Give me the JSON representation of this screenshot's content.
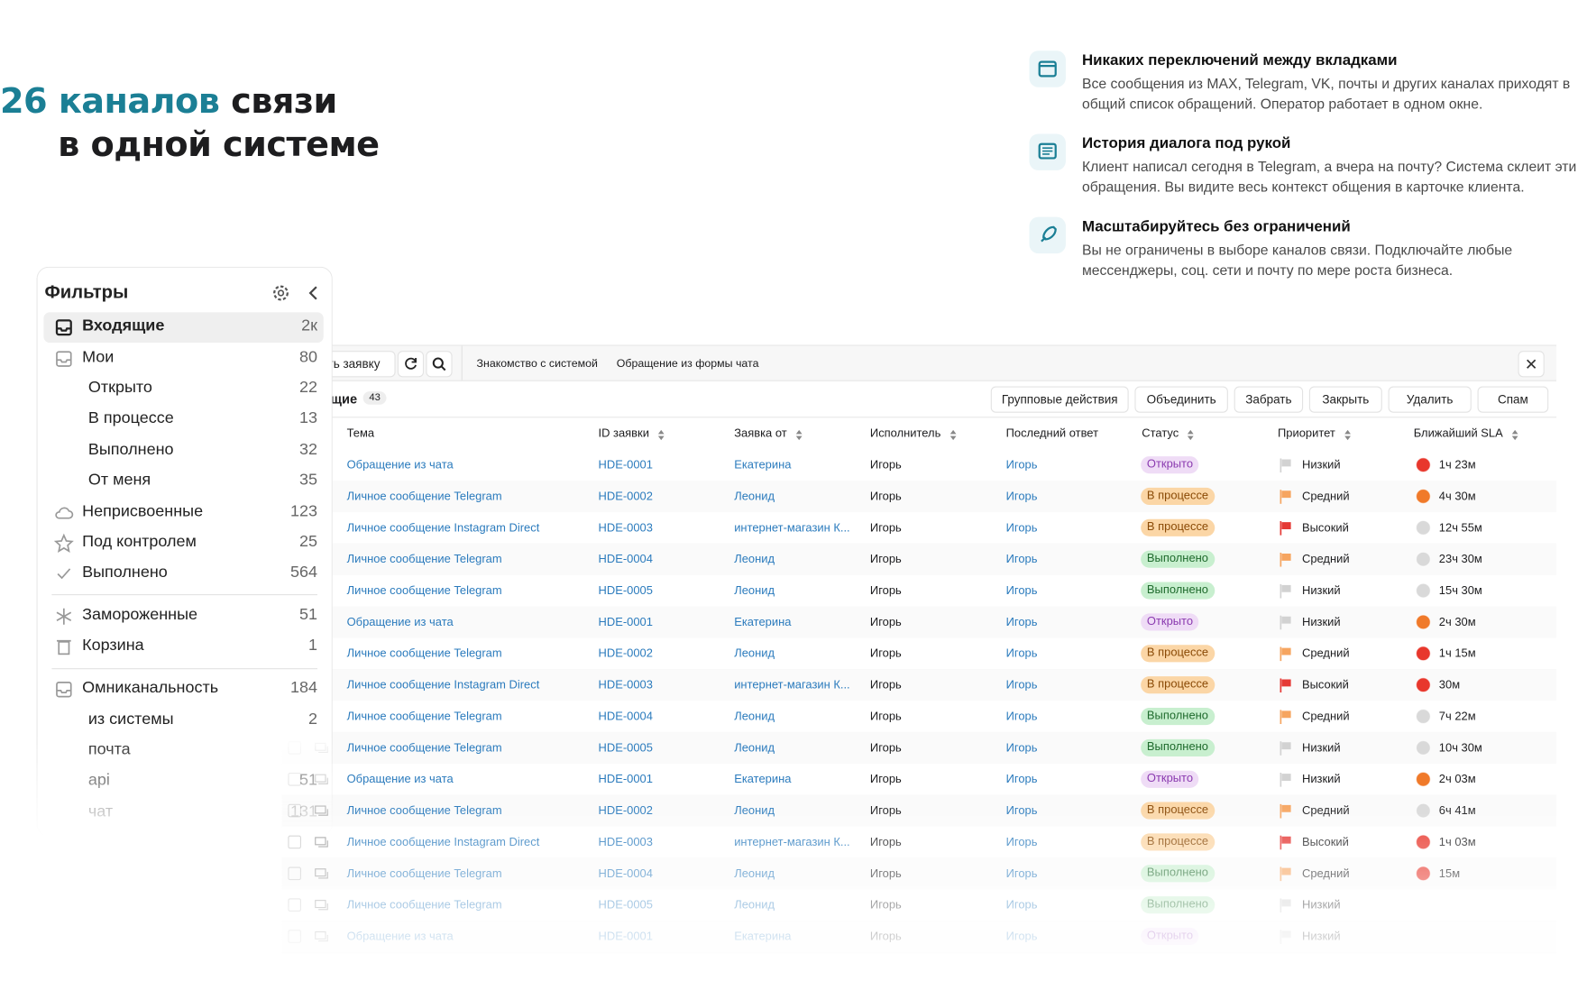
{
  "header": {
    "title_accent": "26 каналов",
    "title_rest": "связи",
    "title_line2": "в одной системе"
  },
  "features": [
    {
      "title": "Никаких переключений между вкладками",
      "text": "Все сообщения из MAX, Telegram, VK, почты и других каналах приходят в общий список обращений. Оператор работает в одном окне."
    },
    {
      "title": "История диалога под рукой",
      "text": "Клиент написал сегодня в Telegram, а вчера на почту? Система склеит эти обращения. Вы видите весь контекст общения в карточке клиента."
    },
    {
      "title": "Масштабируйтесь без ограничений",
      "text": "Вы не ограничены в выборе каналов связи. Подключайте любые мессенджеры, соц. сети и почту по мере роста бизнеса."
    }
  ],
  "filters": {
    "title": "Фильтры",
    "items": [
      {
        "label": "Входящие",
        "count": "2к"
      },
      {
        "label": "Мои",
        "count": "80"
      },
      {
        "label": "Открыто",
        "count": "22"
      },
      {
        "label": "В процессе",
        "count": "13"
      },
      {
        "label": "Выполнено",
        "count": "32"
      },
      {
        "label": "От меня",
        "count": "35"
      },
      {
        "label": "Неприсвоенные",
        "count": "123"
      },
      {
        "label": "Под контролем",
        "count": "25"
      },
      {
        "label": "Выполнено",
        "count": "564"
      },
      {
        "label": "Замороженные",
        "count": "51"
      },
      {
        "label": "Корзина",
        "count": "1"
      },
      {
        "label": "Омниканальность",
        "count": "184"
      },
      {
        "label": "из системы",
        "count": "2"
      },
      {
        "label": "почта"
      },
      {
        "label": "api",
        "count": "51"
      },
      {
        "label": "чат",
        "count": "131"
      }
    ]
  },
  "table": {
    "create_button": "ть заявку",
    "tabs": [
      "Знакомство с системой",
      "Обращение из формы чата"
    ],
    "list_title": "щие",
    "list_count": "43",
    "actions": [
      "Групповые действия",
      "Объединить",
      "Забрать",
      "Закрыть",
      "Удалить",
      "Спам"
    ],
    "columns": [
      "Тема",
      "ID заявки",
      "Заявка от",
      "Исполнитель",
      "Последний ответ",
      "Статус",
      "Приоритет",
      "Ближайший SLA"
    ],
    "status_colors": {
      "Открыто": [
        "#efdcf6",
        "#8b3bb0"
      ],
      "В процессе": [
        "#fbd6a6",
        "#8a4a06"
      ],
      "Выполнено": [
        "#c8efcf",
        "#1e6a2c"
      ]
    },
    "priority_colors": {
      "Низкий": "#d2d2d2",
      "Средний": "#f6a560",
      "Высокий": "#e53935"
    },
    "rows": [
      {
        "cells": [
          "Обращение из чата",
          "HDE-0001",
          "Екатерина",
          "Игорь",
          "Игорь",
          "Открыто",
          "Низкий"
        ],
        "sla": "1ч 23м",
        "sla_color": "#e8372c"
      },
      {
        "cells": [
          "Личное сообщение Telegram",
          "HDE-0002",
          "Леонид",
          "Игорь",
          "Игорь",
          "В процессе",
          "Средний"
        ],
        "sla": "4ч 30м",
        "sla_color": "#f07a2a"
      },
      {
        "cells": [
          "Личное сообщение Instagram Direct",
          "HDE-0003",
          "интернет-магазин К...",
          "Игорь",
          "Игорь",
          "В процессе",
          "Высокий"
        ],
        "sla": "12ч 55м",
        "sla_color": "#d9d9d9"
      },
      {
        "cells": [
          "Личное сообщение Telegram",
          "HDE-0004",
          "Леонид",
          "Игорь",
          "Игорь",
          "Выполнено",
          "Средний"
        ],
        "sla": "23ч 30м",
        "sla_color": "#d9d9d9"
      },
      {
        "cells": [
          "Личное сообщение Telegram",
          "HDE-0005",
          "Леонид",
          "Игорь",
          "Игорь",
          "Выполнено",
          "Низкий"
        ],
        "sla": "15ч 30м",
        "sla_color": "#d9d9d9"
      },
      {
        "cells": [
          "Обращение из чата",
          "HDE-0001",
          "Екатерина",
          "Игорь",
          "Игорь",
          "Открыто",
          "Низкий"
        ],
        "sla": "2ч 30м",
        "sla_color": "#f07a2a"
      },
      {
        "cells": [
          "Личное сообщение Telegram",
          "HDE-0002",
          "Леонид",
          "Игорь",
          "Игорь",
          "В процессе",
          "Средний"
        ],
        "sla": "1ч 15м",
        "sla_color": "#e8372c"
      },
      {
        "cells": [
          "Личное сообщение Instagram Direct",
          "HDE-0003",
          "интернет-магазин К...",
          "Игорь",
          "Игорь",
          "В процессе",
          "Высокий"
        ],
        "sla": "30м",
        "sla_color": "#e8372c"
      },
      {
        "cells": [
          "Личное сообщение Telegram",
          "HDE-0004",
          "Леонид",
          "Игорь",
          "Игорь",
          "Выполнено",
          "Средний"
        ],
        "sla": "7ч 22м",
        "sla_color": "#d9d9d9"
      },
      {
        "cells": [
          "Личное сообщение Telegram",
          "HDE-0005",
          "Леонид",
          "Игорь",
          "Игорь",
          "Выполнено",
          "Низкий"
        ],
        "sla": "10ч 30м",
        "sla_color": "#d9d9d9"
      },
      {
        "cells": [
          "Обращение из чата",
          "HDE-0001",
          "Екатерина",
          "Игорь",
          "Игорь",
          "Открыто",
          "Низкий"
        ],
        "sla": "2ч 03м",
        "sla_color": "#f07a2a"
      },
      {
        "cells": [
          "Личное сообщение Telegram",
          "HDE-0002",
          "Леонид",
          "Игорь",
          "Игорь",
          "В процессе",
          "Средний"
        ],
        "sla": "6ч 41м",
        "sla_color": "#d9d9d9"
      },
      {
        "cells": [
          "Личное сообщение Instagram Direct",
          "HDE-0003",
          "интернет-магазин К...",
          "Игорь",
          "Игорь",
          "В процессе",
          "Высокий"
        ],
        "sla": "1ч 03м",
        "sla_color": "#e8372c"
      },
      {
        "cells": [
          "Личное сообщение Telegram",
          "HDE-0004",
          "Леонид",
          "Игорь",
          "Игорь",
          "Выполнено",
          "Средний"
        ],
        "sla": "15м",
        "sla_color": "#e8372c"
      },
      {
        "cells": [
          "Личное сообщение Telegram",
          "HDE-0005",
          "Леонид",
          "Игорь",
          "Игорь",
          "Выполнено",
          "Низкий"
        ]
      },
      {
        "cells": [
          "Обращение из чата",
          "HDE-0001",
          "Екатерина",
          "Игорь",
          "Игорь",
          "Открыто",
          "Низкий"
        ]
      }
    ]
  }
}
